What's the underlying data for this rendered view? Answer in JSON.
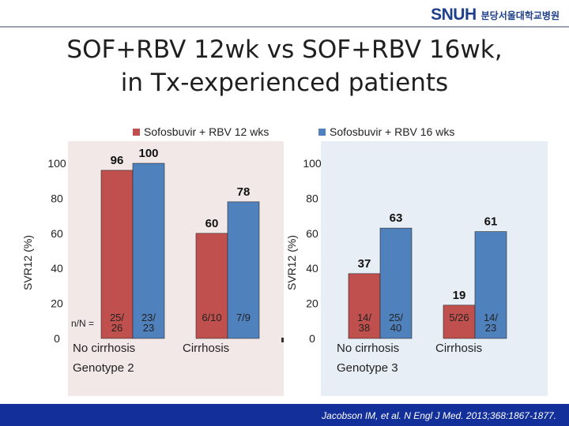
{
  "header": {
    "logo_text": "SNUH",
    "hospital_name": "분당서울대학교병원"
  },
  "title": {
    "line1": "SOF+RBV 12wk vs SOF+RBV 16wk,",
    "line2": "in Tx-experienced patients"
  },
  "colors": {
    "sof12": "#c0504d",
    "sof16": "#4f81bd",
    "panel_left_bg": "#f2e8e8",
    "panel_right_bg": "#e8eef6",
    "footer_bg": "#13309a"
  },
  "chart_data": [
    {
      "type": "bar",
      "genotype": "Genotype 2",
      "categories": [
        "No cirrhosis",
        "Cirrhosis"
      ],
      "series": [
        {
          "name": "Sofosbuvir + RBV 12 wks",
          "values": [
            96,
            60
          ],
          "n_labels": [
            "25/\n26",
            "6/10"
          ]
        },
        {
          "name": "Sofosbuvir + RBV 16 wks",
          "values": [
            100,
            78
          ],
          "n_labels": [
            "23/\n23",
            "7/9"
          ]
        }
      ],
      "n_prefix": "n/N =",
      "ylabel": "SVR12 (%)",
      "yticks": [
        0,
        20,
        40,
        60,
        80,
        100
      ],
      "ylim": [
        0,
        100
      ]
    },
    {
      "type": "bar",
      "genotype": "Genotype 3",
      "categories": [
        "No cirrhosis",
        "Cirrhosis"
      ],
      "series": [
        {
          "name": "Sofosbuvir + RBV 12 wks",
          "values": [
            37,
            19
          ],
          "n_labels": [
            "14/\n38",
            "5/26"
          ]
        },
        {
          "name": "Sofosbuvir + RBV 16 wks",
          "values": [
            63,
            61
          ],
          "n_labels": [
            "25/\n40",
            "14/\n23"
          ]
        }
      ],
      "ylabel": "SVR12 (%)",
      "yticks": [
        0,
        20,
        40,
        60,
        80,
        100
      ],
      "ylim": [
        0,
        100
      ]
    }
  ],
  "footer": {
    "citation": "Jacobson IM, et al. N Engl J Med. 2013;368:1867-1877."
  }
}
